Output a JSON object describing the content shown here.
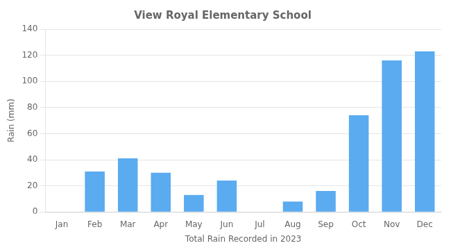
{
  "chart_data": {
    "type": "bar",
    "title": "View Royal Elementary School",
    "xlabel": "Total Rain Recorded in 2023",
    "ylabel": "Rain (mm)",
    "categories": [
      "Jan",
      "Feb",
      "Mar",
      "Apr",
      "May",
      "Jun",
      "Jul",
      "Aug",
      "Sep",
      "Oct",
      "Nov",
      "Dec"
    ],
    "values": [
      0,
      31,
      41,
      30,
      13,
      24,
      0,
      8,
      16,
      74,
      116,
      123
    ],
    "color": "#5aabf0",
    "ylim": [
      0,
      140
    ],
    "yticks": [
      0,
      20,
      40,
      60,
      80,
      100,
      120,
      140
    ],
    "grid": true
  }
}
